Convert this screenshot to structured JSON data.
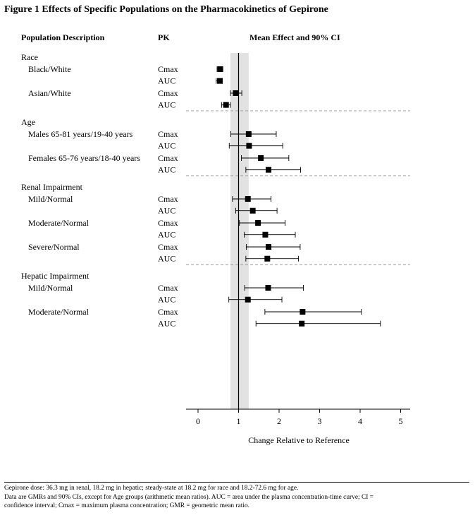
{
  "figure_title": "Figure 1  Effects of Specific Populations on the Pharmacokinetics of Gepirone",
  "footnotes": [
    "Gepirone dose: 36.3 mg in renal, 18.2 mg in hepatic; steady-state at 18.2 mg for race and 18.2-72.6 mg for age.",
    "Data are GMRs and 90% CIs, except for Age groups (arithmetic mean ratios). AUC = area under the plasma concentration-time curve; CI =",
    "confidence interval; Cmax = maximum plasma concentration; GMR = geometric mean ratio."
  ],
  "chart_data": {
    "type": "forest",
    "title": "",
    "column_headers": {
      "population": "Population Description",
      "pk": "PK",
      "effect": "Mean Effect and 90% CI"
    },
    "xlabel": "Change Relative to Reference",
    "xlim": [
      -0.35,
      5.2
    ],
    "xticks": [
      0,
      1,
      2,
      3,
      4,
      5
    ],
    "xtick_labels": [
      "0",
      "1",
      "2",
      "3",
      "4",
      "5"
    ],
    "reference_line": 1,
    "reference_band": [
      0.8,
      1.25
    ],
    "groups": [
      {
        "name": "Race",
        "subgroups": [
          {
            "name": "Black/White",
            "rows": [
              {
                "pk": "Cmax",
                "estimate": 0.55,
                "lower": 0.47,
                "upper": 0.61
              },
              {
                "pk": "AUC",
                "estimate": 0.54,
                "lower": 0.45,
                "upper": 0.6
              }
            ]
          },
          {
            "name": "Asian/White",
            "rows": [
              {
                "pk": "Cmax",
                "estimate": 0.93,
                "lower": 0.8,
                "upper": 1.08
              },
              {
                "pk": "AUC",
                "estimate": 0.69,
                "lower": 0.58,
                "upper": 0.8
              }
            ]
          }
        ]
      },
      {
        "name": "Age",
        "subgroups": [
          {
            "name": "Males 65-81 years/19-40 years",
            "rows": [
              {
                "pk": "Cmax",
                "estimate": 1.25,
                "lower": 0.81,
                "upper": 1.93
              },
              {
                "pk": "AUC",
                "estimate": 1.26,
                "lower": 0.77,
                "upper": 2.09
              }
            ]
          },
          {
            "name": "Females 65-76 years/18-40 years",
            "rows": [
              {
                "pk": "Cmax",
                "estimate": 1.55,
                "lower": 1.07,
                "upper": 2.24
              },
              {
                "pk": "AUC",
                "estimate": 1.74,
                "lower": 1.18,
                "upper": 2.53
              }
            ]
          }
        ]
      },
      {
        "name": "Renal Impairment",
        "subgroups": [
          {
            "name": "Mild/Normal",
            "rows": [
              {
                "pk": "Cmax",
                "estimate": 1.23,
                "lower": 0.85,
                "upper": 1.8
              },
              {
                "pk": "AUC",
                "estimate": 1.35,
                "lower": 0.93,
                "upper": 1.95
              }
            ]
          },
          {
            "name": "Moderate/Normal",
            "rows": [
              {
                "pk": "Cmax",
                "estimate": 1.48,
                "lower": 1.02,
                "upper": 2.15
              },
              {
                "pk": "AUC",
                "estimate": 1.66,
                "lower": 1.14,
                "upper": 2.4
              }
            ]
          },
          {
            "name": "Severe/Normal",
            "rows": [
              {
                "pk": "Cmax",
                "estimate": 1.74,
                "lower": 1.19,
                "upper": 2.52
              },
              {
                "pk": "AUC",
                "estimate": 1.71,
                "lower": 1.18,
                "upper": 2.48
              }
            ]
          }
        ]
      },
      {
        "name": "Hepatic Impairment",
        "subgroups": [
          {
            "name": "Mild/Normal",
            "rows": [
              {
                "pk": "Cmax",
                "estimate": 1.73,
                "lower": 1.15,
                "upper": 2.6
              },
              {
                "pk": "AUC",
                "estimate": 1.23,
                "lower": 0.76,
                "upper": 2.07
              }
            ]
          },
          {
            "name": "Moderate/Normal",
            "rows": [
              {
                "pk": "Cmax",
                "estimate": 2.58,
                "lower": 1.65,
                "upper": 4.03
              },
              {
                "pk": "AUC",
                "estimate": 2.56,
                "lower": 1.43,
                "upper": 4.5
              }
            ]
          }
        ]
      }
    ]
  }
}
